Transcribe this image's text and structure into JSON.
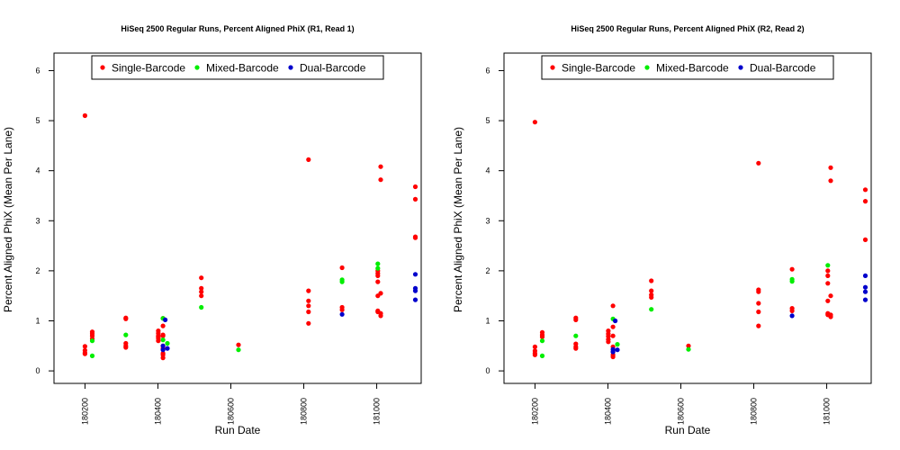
{
  "chart_data": [
    {
      "type": "scatter",
      "title": "HiSeq 2500 Regular Runs, Percent Aligned PhiX (R1, Read 1)",
      "xlabel": "Run Date",
      "ylabel": "Percent Aligned PhiX (Mean Per Lane)",
      "xlim": [
        180115,
        181122
      ],
      "ylim": [
        -0.25,
        6.35
      ],
      "x_ticks": [
        180200,
        180400,
        180600,
        180800,
        181000
      ],
      "y_ticks": [
        0,
        1,
        2,
        3,
        4,
        5,
        6
      ],
      "grid": false,
      "legend_position": "top",
      "series": [
        {
          "name": "Single-Barcode",
          "color": "#ff0000",
          "points": [
            [
              180200,
              5.1
            ],
            [
              180200,
              0.49
            ],
            [
              180200,
              0.41
            ],
            [
              180200,
              0.36
            ],
            [
              180200,
              0.34
            ],
            [
              180220,
              0.78
            ],
            [
              180220,
              0.74
            ],
            [
              180220,
              0.7
            ],
            [
              180220,
              0.64
            ],
            [
              180312,
              1.06
            ],
            [
              180312,
              1.04
            ],
            [
              180312,
              0.55
            ],
            [
              180312,
              0.5
            ],
            [
              180312,
              0.47
            ],
            [
              180401,
              0.8
            ],
            [
              180401,
              0.75
            ],
            [
              180401,
              0.7
            ],
            [
              180401,
              0.65
            ],
            [
              180401,
              0.6
            ],
            [
              180401,
              0.68
            ],
            [
              180414,
              1.05
            ],
            [
              180414,
              0.9
            ],
            [
              180414,
              0.72
            ],
            [
              180414,
              0.5
            ],
            [
              180414,
              0.45
            ],
            [
              180414,
              0.35
            ],
            [
              180414,
              0.32
            ],
            [
              180414,
              0.26
            ],
            [
              180414,
              0.7
            ],
            [
              180519,
              1.86
            ],
            [
              180519,
              1.65
            ],
            [
              180519,
              1.58
            ],
            [
              180519,
              1.5
            ],
            [
              180621,
              0.52
            ],
            [
              180813,
              4.22
            ],
            [
              180813,
              1.6
            ],
            [
              180813,
              1.4
            ],
            [
              180813,
              1.3
            ],
            [
              180813,
              1.18
            ],
            [
              180813,
              0.95
            ],
            [
              180905,
              2.06
            ],
            [
              180905,
              1.27
            ],
            [
              180905,
              1.22
            ],
            [
              181003,
              2.0
            ],
            [
              181003,
              1.95
            ],
            [
              181003,
              1.9
            ],
            [
              181003,
              1.78
            ],
            [
              181003,
              1.5
            ],
            [
              181003,
              1.2
            ],
            [
              181003,
              1.18
            ],
            [
              181011,
              4.08
            ],
            [
              181011,
              3.82
            ],
            [
              181011,
              1.55
            ],
            [
              181011,
              1.15
            ],
            [
              181011,
              1.1
            ],
            [
              181106,
              3.68
            ],
            [
              181106,
              3.43
            ],
            [
              181106,
              2.68
            ],
            [
              181106,
              2.66
            ]
          ]
        },
        {
          "name": "Mixed-Barcode",
          "color": "#00ee00",
          "points": [
            [
              180220,
              0.6
            ],
            [
              180220,
              0.3
            ],
            [
              180312,
              0.72
            ],
            [
              180414,
              1.05
            ],
            [
              180414,
              0.62
            ],
            [
              180426,
              0.55
            ],
            [
              180519,
              1.27
            ],
            [
              180621,
              0.42
            ],
            [
              180905,
              1.82
            ],
            [
              180905,
              1.78
            ],
            [
              181003,
              2.14
            ],
            [
              181003,
              2.05
            ]
          ]
        },
        {
          "name": "Dual-Barcode",
          "color": "#0000cc",
          "points": [
            [
              180420,
              1.02
            ],
            [
              180414,
              0.5
            ],
            [
              180414,
              0.42
            ],
            [
              180426,
              0.45
            ],
            [
              180905,
              1.13
            ],
            [
              181106,
              1.93
            ],
            [
              181106,
              1.65
            ],
            [
              181106,
              1.6
            ],
            [
              181106,
              1.42
            ]
          ]
        }
      ]
    },
    {
      "type": "scatter",
      "title": "HiSeq 2500 Regular Runs, Percent Aligned PhiX (R2, Read 2)",
      "xlabel": "Run Date",
      "ylabel": "Percent Aligned PhiX (Mean Per Lane)",
      "xlim": [
        180115,
        181122
      ],
      "ylim": [
        -0.25,
        6.35
      ],
      "x_ticks": [
        180200,
        180400,
        180600,
        180800,
        181000
      ],
      "y_ticks": [
        0,
        1,
        2,
        3,
        4,
        5,
        6
      ],
      "grid": false,
      "legend_position": "top",
      "series": [
        {
          "name": "Single-Barcode",
          "color": "#ff0000",
          "points": [
            [
              180200,
              4.97
            ],
            [
              180200,
              0.48
            ],
            [
              180200,
              0.4
            ],
            [
              180200,
              0.35
            ],
            [
              180200,
              0.32
            ],
            [
              180220,
              0.77
            ],
            [
              180220,
              0.72
            ],
            [
              180220,
              0.68
            ],
            [
              180312,
              1.06
            ],
            [
              180312,
              1.02
            ],
            [
              180312,
              0.54
            ],
            [
              180312,
              0.48
            ],
            [
              180312,
              0.45
            ],
            [
              180401,
              0.8
            ],
            [
              180401,
              0.74
            ],
            [
              180401,
              0.69
            ],
            [
              180401,
              0.63
            ],
            [
              180401,
              0.58
            ],
            [
              180414,
              1.3
            ],
            [
              180414,
              0.88
            ],
            [
              180414,
              0.7
            ],
            [
              180414,
              0.48
            ],
            [
              180414,
              0.38
            ],
            [
              180414,
              0.32
            ],
            [
              180414,
              0.28
            ],
            [
              180519,
              1.8
            ],
            [
              180519,
              1.6
            ],
            [
              180519,
              1.52
            ],
            [
              180519,
              1.47
            ],
            [
              180621,
              0.5
            ],
            [
              180813,
              4.15
            ],
            [
              180813,
              1.62
            ],
            [
              180813,
              1.58
            ],
            [
              180813,
              1.35
            ],
            [
              180813,
              1.18
            ],
            [
              180813,
              0.9
            ],
            [
              180905,
              2.03
            ],
            [
              180905,
              1.25
            ],
            [
              180905,
              1.2
            ],
            [
              181003,
              2.0
            ],
            [
              181003,
              1.9
            ],
            [
              181003,
              1.75
            ],
            [
              181003,
              1.4
            ],
            [
              181003,
              1.15
            ],
            [
              181003,
              1.12
            ],
            [
              181011,
              4.06
            ],
            [
              181011,
              3.8
            ],
            [
              181011,
              1.5
            ],
            [
              181011,
              1.12
            ],
            [
              181011,
              1.08
            ],
            [
              181106,
              3.62
            ],
            [
              181106,
              3.39
            ],
            [
              181106,
              2.62
            ]
          ]
        },
        {
          "name": "Mixed-Barcode",
          "color": "#00ee00",
          "points": [
            [
              180220,
              0.6
            ],
            [
              180220,
              0.3
            ],
            [
              180312,
              0.7
            ],
            [
              180414,
              1.04
            ],
            [
              180426,
              0.53
            ],
            [
              180519,
              1.23
            ],
            [
              180621,
              0.43
            ],
            [
              180905,
              1.83
            ],
            [
              180905,
              1.79
            ],
            [
              181003,
              2.11
            ]
          ]
        },
        {
          "name": "Dual-Barcode",
          "color": "#0000cc",
          "points": [
            [
              180420,
              1.0
            ],
            [
              180414,
              0.43
            ],
            [
              180414,
              0.38
            ],
            [
              180426,
              0.42
            ],
            [
              180905,
              1.1
            ],
            [
              181106,
              1.9
            ],
            [
              181106,
              1.67
            ],
            [
              181106,
              1.58
            ],
            [
              181106,
              1.42
            ]
          ]
        }
      ]
    }
  ]
}
